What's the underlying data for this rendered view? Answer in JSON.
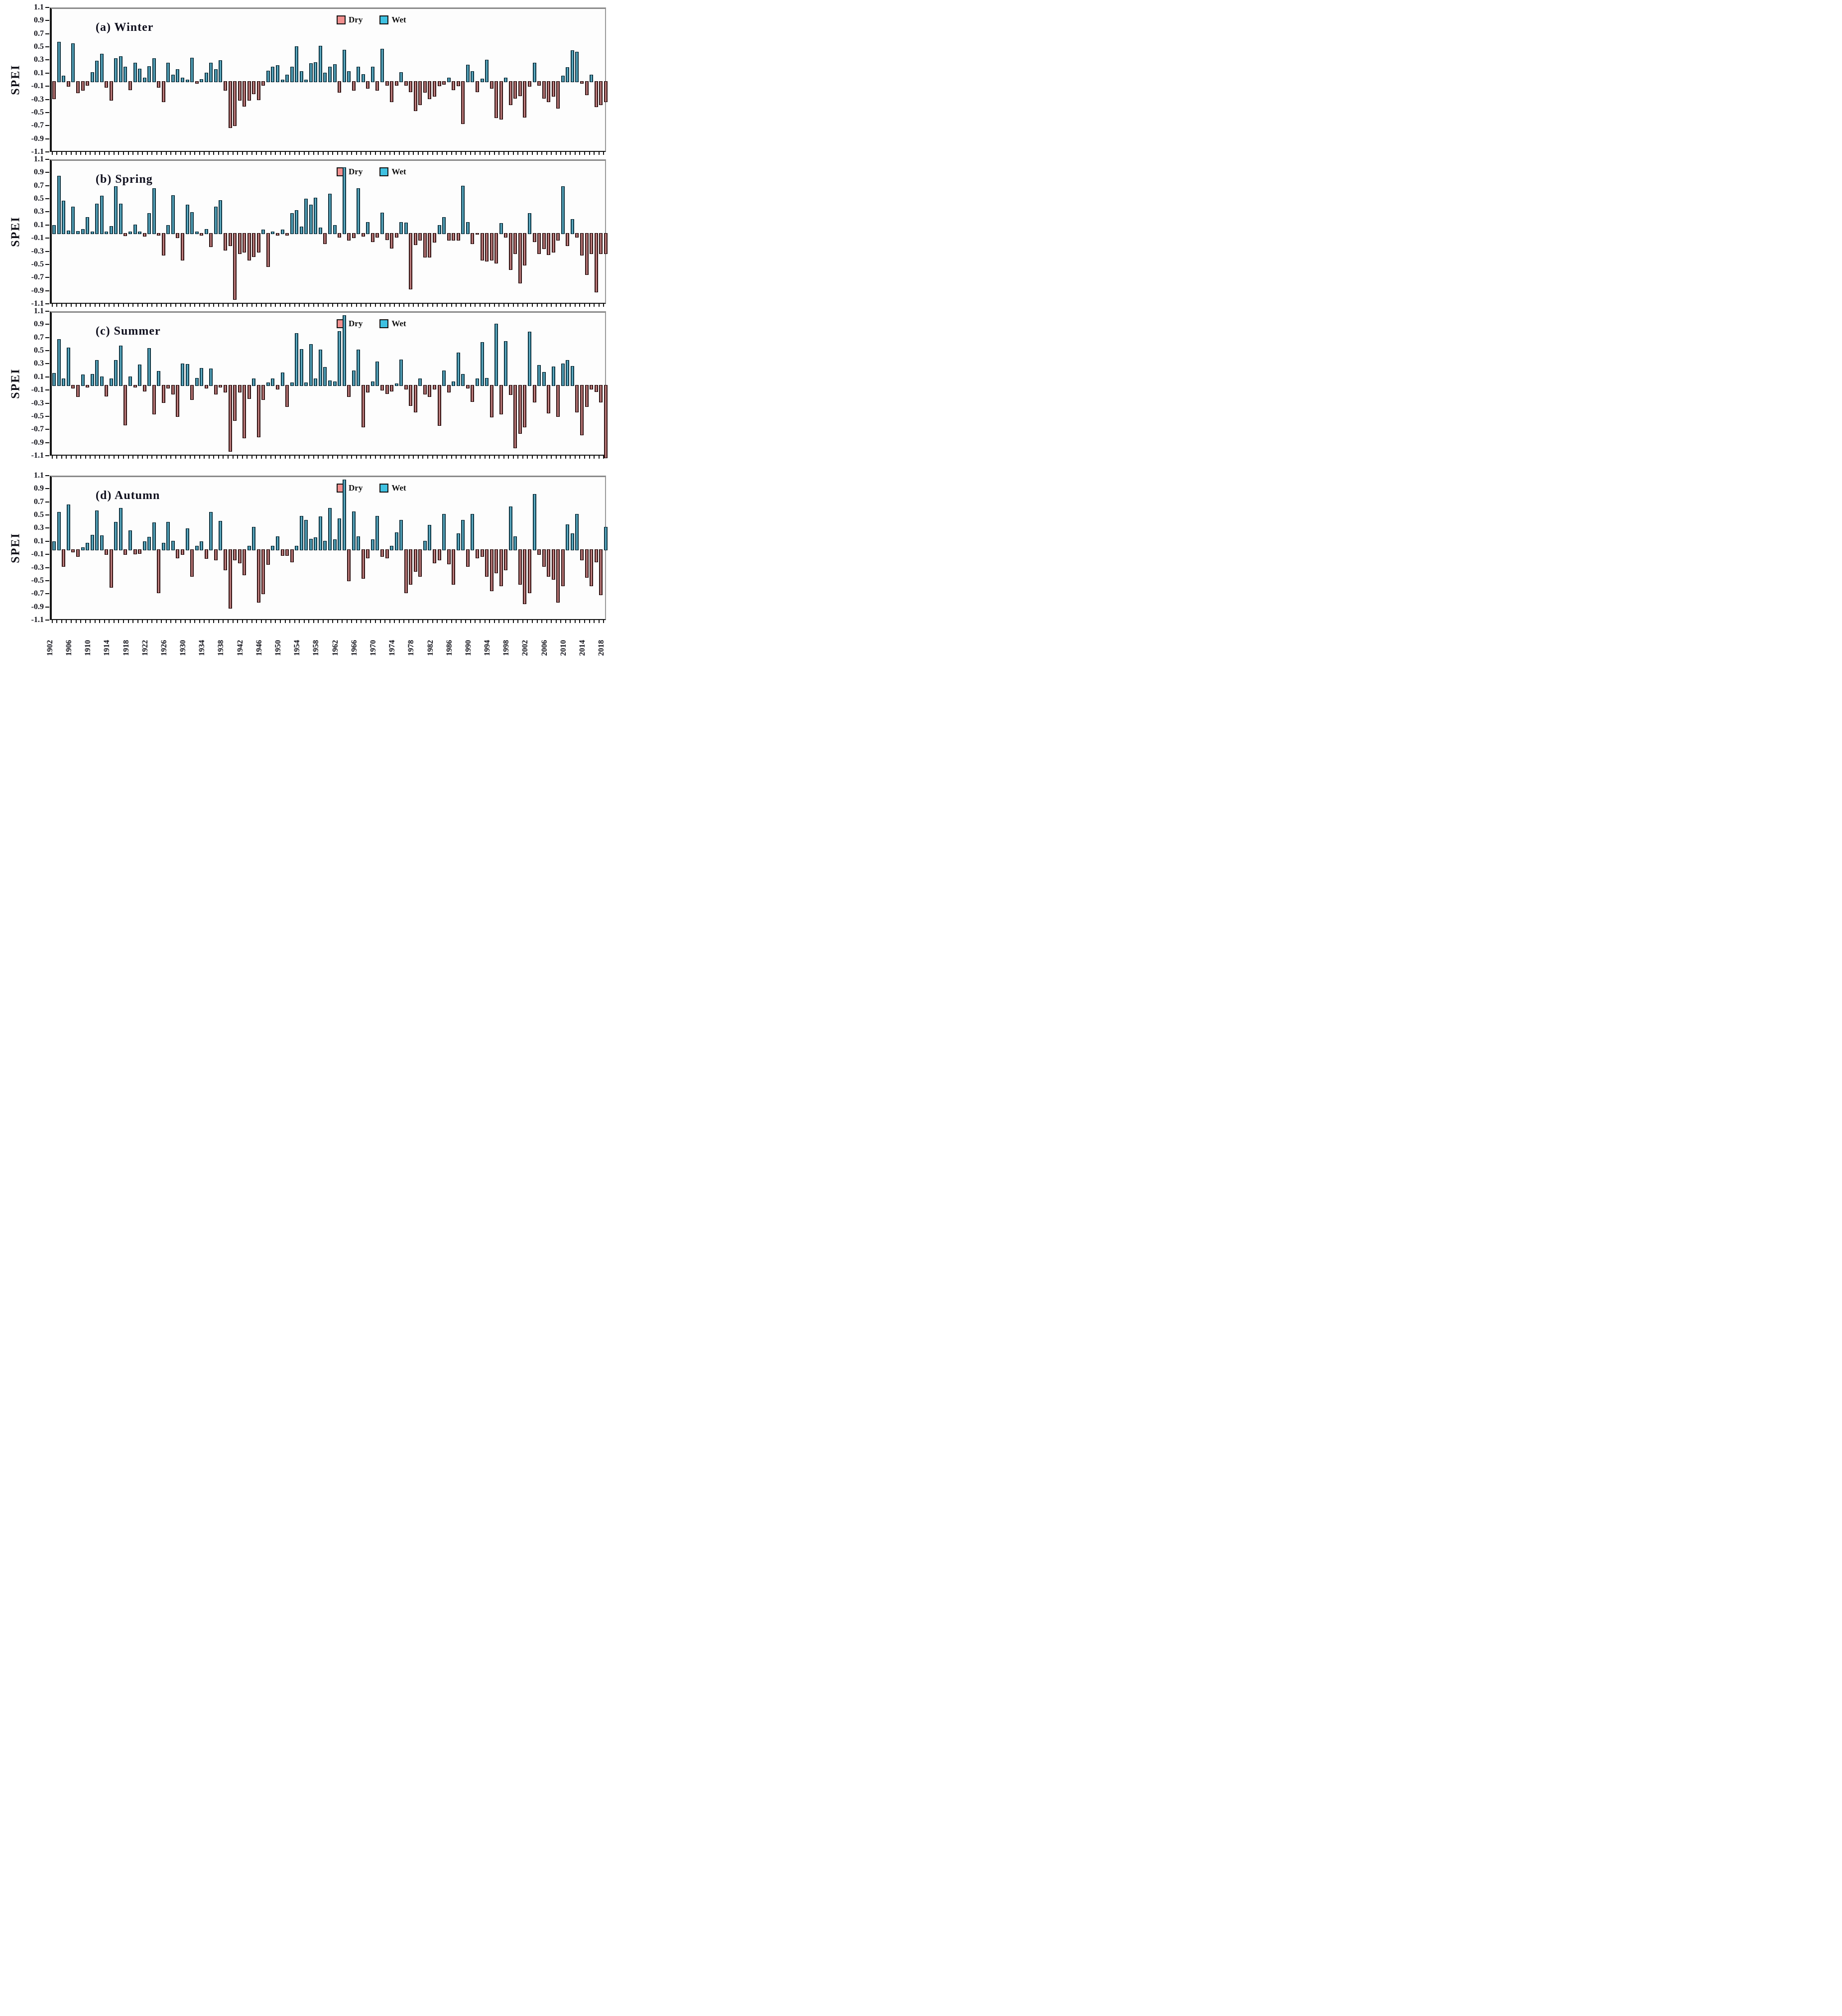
{
  "figure": {
    "background": "#ffffff",
    "description_visible_text_only": true
  },
  "axis": {
    "ylabel": "SPEI",
    "ymin": -1.1,
    "ymax": 1.1,
    "ytick_step": 0.2,
    "yticks": [
      "1.1",
      "0.9",
      "0.7",
      "0.5",
      "0.3",
      "0.1",
      "-0.1",
      "-0.3",
      "-0.5",
      "-0.7",
      "-0.9",
      "-1.1"
    ],
    "x_start": 1902,
    "x_end": 2018,
    "x_label_step": 4,
    "x_labels": [
      "1902",
      "1906",
      "1910",
      "1914",
      "1918",
      "1922",
      "1926",
      "1930",
      "1934",
      "1938",
      "1942",
      "1946",
      "1950",
      "1954",
      "1958",
      "1962",
      "1966",
      "1970",
      "1974",
      "1978",
      "1982",
      "1986",
      "1990",
      "1994",
      "1998",
      "2002",
      "2006",
      "2010",
      "2014",
      "2018"
    ]
  },
  "legend": {
    "dry": "Dry",
    "wet": "Wet",
    "dry_color": "#f2908f",
    "wet_color": "#3fc1e1",
    "position": "top-center-of-each-panel"
  },
  "colors": {
    "wet_bar_dark": "#0f3b49",
    "wet_bar_light": "#9adef0",
    "dry_bar_dark": "#2e0f0f",
    "dry_bar_light": "#f2bcbc",
    "frame_gray": "#8a8a8a",
    "axis_black": "#151515",
    "text": "#101018"
  },
  "chart_data": [
    {
      "type": "bar",
      "season": "Winter",
      "title": "(a) Winter",
      "xlabel": "",
      "ylabel": "SPEI",
      "ylim": [
        -1.1,
        1.1
      ],
      "x_years": {
        "start": 1902,
        "end": 2018
      },
      "values": [
        -0.26,
        0.6,
        0.08,
        -0.07,
        0.58,
        -0.17,
        -0.13,
        -0.05,
        0.14,
        0.31,
        0.42,
        -0.08,
        -0.28,
        0.35,
        0.38,
        0.22,
        -0.12,
        0.28,
        0.19,
        0.05,
        0.23,
        0.35,
        -0.08,
        -0.3,
        0.28,
        0.1,
        0.18,
        0.05,
        0.02,
        0.36,
        -0.02,
        0.03,
        0.13,
        0.28,
        0.18,
        0.32,
        -0.13,
        -0.7,
        -0.67,
        -0.28,
        -0.37,
        -0.28,
        -0.18,
        -0.27,
        -0.05,
        0.16,
        0.22,
        0.24,
        0.02,
        0.1,
        0.22,
        0.53,
        0.15,
        0.02,
        0.27,
        0.29,
        0.54,
        0.13,
        0.22,
        0.26,
        -0.16,
        0.48,
        0.15,
        -0.13,
        0.22,
        0.11,
        -0.1,
        0.22,
        -0.13,
        0.49,
        -0.05,
        -0.3,
        -0.05,
        0.14,
        -0.05,
        -0.15,
        -0.44,
        -0.35,
        -0.16,
        -0.26,
        -0.22,
        -0.06,
        -0.04,
        0.05,
        -0.12,
        -0.06,
        -0.64,
        0.25,
        0.15,
        -0.15,
        0.04,
        0.33,
        -0.1,
        -0.55,
        -0.57,
        0.05,
        -0.35,
        -0.25,
        -0.21,
        -0.54,
        -0.07,
        0.28,
        -0.05,
        -0.25,
        -0.3,
        -0.22,
        -0.4,
        0.08,
        0.21,
        0.47,
        0.45,
        -0.02,
        -0.2,
        0.1,
        -0.38,
        -0.35,
        -0.3
      ]
    },
    {
      "type": "bar",
      "season": "Spring",
      "title": "(b) Spring",
      "xlabel": "",
      "ylabel": "SPEI",
      "ylim": [
        -1.1,
        1.1
      ],
      "x_years": {
        "start": 1902,
        "end": 2018
      },
      "values": [
        0.12,
        0.87,
        0.49,
        0.04,
        0.4,
        0.03,
        0.06,
        0.24,
        0.02,
        0.45,
        0.57,
        0.02,
        0.11,
        0.71,
        0.45,
        -0.03,
        0.02,
        0.13,
        0.02,
        -0.04,
        0.3,
        0.68,
        -0.02,
        -0.33,
        0.12,
        0.58,
        -0.06,
        -0.4,
        0.43,
        0.32,
        0.02,
        -0.02,
        0.06,
        -0.2,
        0.4,
        0.5,
        -0.25,
        -0.18,
        -1.0,
        -0.3,
        -0.28,
        -0.4,
        -0.35,
        -0.28,
        0.05,
        -0.5,
        0.02,
        -0.02,
        0.05,
        -0.02,
        0.3,
        0.35,
        0.1,
        0.52,
        0.43,
        0.54,
        0.08,
        -0.15,
        0.6,
        0.12,
        -0.05,
        1.0,
        -0.1,
        -0.06,
        0.68,
        -0.04,
        0.17,
        -0.12,
        -0.05,
        0.31,
        -0.09,
        -0.22,
        -0.05,
        0.17,
        0.16,
        -0.84,
        -0.17,
        -0.1,
        -0.36,
        -0.36,
        -0.13,
        0.12,
        0.24,
        -0.1,
        -0.1,
        -0.1,
        0.72,
        0.17,
        -0.15,
        -0.01,
        -0.4,
        -0.42,
        -0.4,
        -0.45,
        0.15,
        -0.05,
        -0.55,
        -0.3,
        -0.75,
        -0.48,
        0.3,
        -0.12,
        -0.3,
        -0.23,
        -0.32,
        -0.28,
        -0.1,
        0.71,
        -0.18,
        0.21,
        -0.05,
        -0.33,
        -0.62,
        -0.3,
        -0.89,
        -0.3,
        -0.3
      ]
    },
    {
      "type": "bar",
      "season": "Summer",
      "title": "(c) Summer",
      "xlabel": "",
      "ylabel": "SPEI",
      "ylim": [
        -1.1,
        1.1
      ],
      "x_years": {
        "start": 1902,
        "end": 2018
      },
      "values": [
        0.18,
        0.7,
        0.1,
        0.57,
        -0.04,
        -0.17,
        0.16,
        -0.02,
        0.17,
        0.38,
        0.13,
        -0.16,
        0.1,
        0.38,
        0.6,
        -0.6,
        0.13,
        -0.02,
        0.31,
        -0.08,
        0.56,
        -0.43,
        0.21,
        -0.26,
        -0.04,
        -0.13,
        -0.47,
        0.33,
        0.32,
        -0.21,
        0.11,
        0.26,
        -0.04,
        0.25,
        -0.13,
        -0.02,
        -0.1,
        -1.0,
        -0.53,
        -0.1,
        -0.8,
        -0.2,
        0.1,
        -0.78,
        -0.21,
        0.04,
        0.1,
        -0.05,
        0.19,
        -0.32,
        0.04,
        0.79,
        0.55,
        0.04,
        0.62,
        0.1,
        0.54,
        0.27,
        0.07,
        0.05,
        0.82,
        1.06,
        -0.17,
        0.22,
        0.54,
        -0.63,
        -0.1,
        0.05,
        0.36,
        -0.07,
        -0.12,
        -0.08,
        0.02,
        0.39,
        -0.05,
        -0.3,
        -0.4,
        0.1,
        -0.13,
        -0.17,
        -0.05,
        -0.61,
        0.22,
        -0.1,
        0.05,
        0.49,
        0.17,
        -0.04,
        -0.24,
        0.1,
        0.65,
        0.11,
        -0.48,
        0.93,
        -0.43,
        0.67,
        -0.14,
        -0.95,
        -0.73,
        -0.63,
        0.81,
        -0.25,
        0.3,
        0.2,
        -0.42,
        0.28,
        -0.47,
        0.33,
        0.38,
        0.29,
        -0.4,
        -0.75,
        -0.32,
        -0.05,
        -0.09,
        -0.25,
        -1.1
      ]
    },
    {
      "type": "bar",
      "season": "Autumn",
      "title": "(d) Autumn",
      "xlabel": "",
      "ylabel": "SPEI",
      "ylim": [
        -1.1,
        1.1
      ],
      "x_years": {
        "start": 1902,
        "end": 2018
      },
      "values": [
        0.12,
        0.57,
        -0.25,
        0.68,
        -0.03,
        -0.1,
        0.03,
        0.1,
        0.22,
        0.59,
        0.21,
        -0.07,
        -0.57,
        0.42,
        0.63,
        -0.07,
        0.29,
        -0.06,
        -0.05,
        0.12,
        0.19,
        0.41,
        -0.65,
        0.1,
        0.42,
        0.13,
        -0.12,
        -0.07,
        0.32,
        -0.4,
        0.05,
        0.12,
        -0.13,
        0.57,
        -0.15,
        0.43,
        -0.3,
        -0.89,
        -0.15,
        -0.2,
        -0.38,
        0.05,
        0.34,
        -0.8,
        -0.67,
        -0.22,
        0.05,
        0.2,
        -0.08,
        -0.08,
        -0.18,
        0.05,
        0.51,
        0.45,
        0.16,
        0.18,
        0.5,
        0.13,
        0.63,
        0.15,
        0.47,
        1.06,
        -0.47,
        0.58,
        0.2,
        -0.43,
        -0.12,
        0.15,
        0.51,
        -0.1,
        -0.12,
        0.05,
        0.26,
        0.45,
        -0.65,
        -0.52,
        -0.33,
        -0.4,
        0.13,
        0.37,
        -0.2,
        -0.15,
        0.54,
        -0.21,
        -0.52,
        0.24,
        0.45,
        -0.25,
        0.54,
        -0.12,
        -0.1,
        -0.4,
        -0.62,
        -0.35,
        -0.55,
        -0.3,
        0.65,
        0.2,
        -0.52,
        -0.82,
        -0.65,
        0.84,
        -0.07,
        -0.25,
        -0.4,
        -0.45,
        -0.8,
        -0.55,
        0.38,
        0.24,
        0.54,
        -0.15,
        -0.42,
        -0.55,
        -0.18,
        -0.68,
        0.34
      ]
    }
  ]
}
